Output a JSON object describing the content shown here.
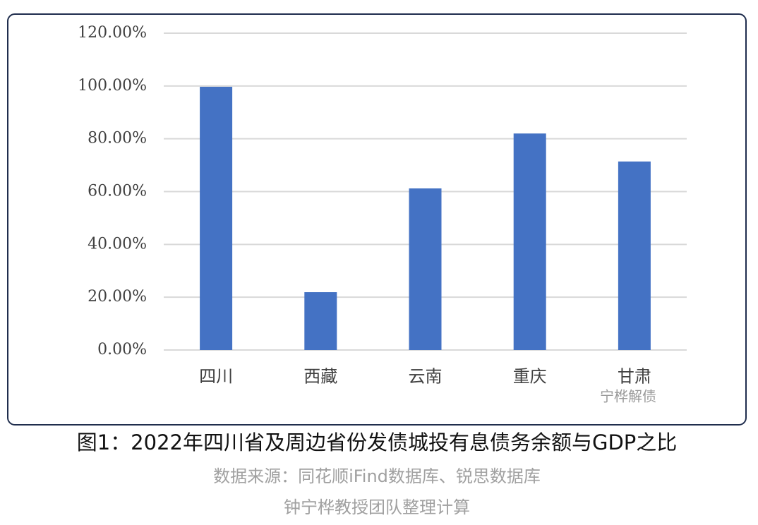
{
  "chart_data": {
    "type": "bar",
    "title": "图1：2022年四川省及周边省份发债城投有息债务余额与GDP之比",
    "source": "数据来源：同花顺iFind数据库、锐思数据库",
    "credit": "钟宁桦教授团队整理计算",
    "watermark": "宁桦解债",
    "categories": [
      "四川",
      "西藏",
      "云南",
      "重庆",
      "甘肃"
    ],
    "values": [
      99.7,
      21.9,
      61.2,
      82.0,
      71.4
    ],
    "color": "#4472c4",
    "ylim": [
      0,
      120
    ],
    "yticks": [
      {
        "value": 0,
        "label": "0.00%"
      },
      {
        "value": 20,
        "label": "20.00%"
      },
      {
        "value": 40,
        "label": "40.00%"
      },
      {
        "value": 60,
        "label": "60.00%"
      },
      {
        "value": 80,
        "label": "80.00%"
      },
      {
        "value": 100,
        "label": "100.00%"
      },
      {
        "value": 120,
        "label": "120.00%"
      }
    ],
    "grid": true
  }
}
